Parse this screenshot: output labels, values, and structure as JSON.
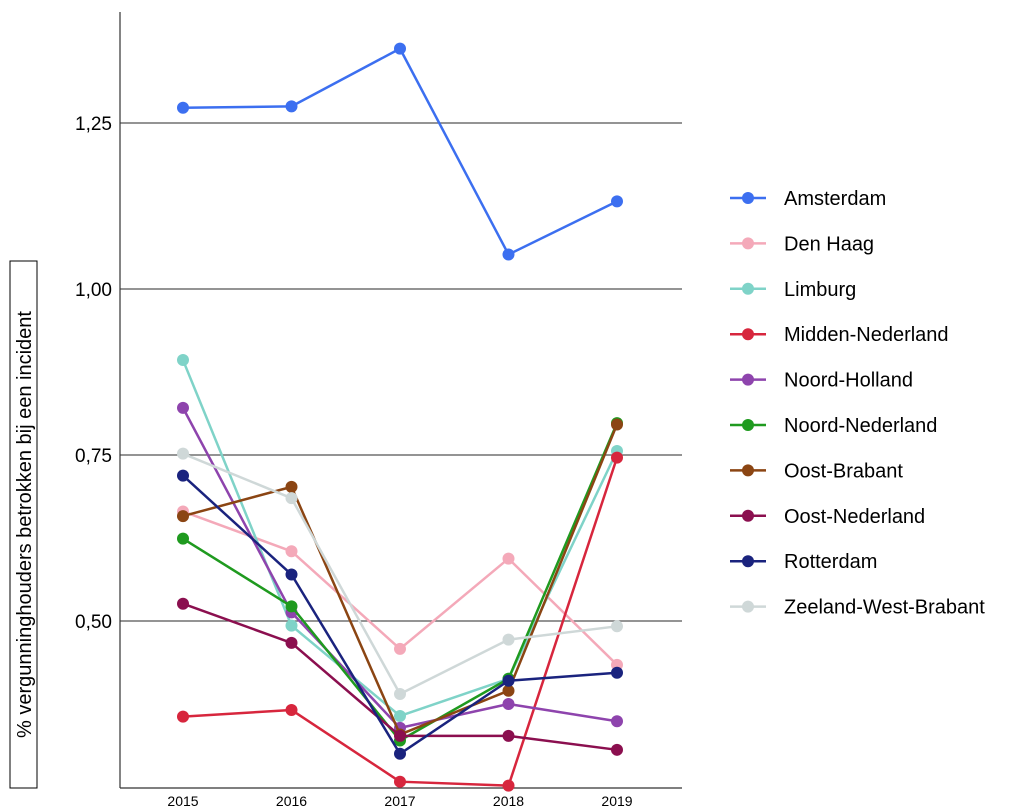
{
  "chart_data": {
    "type": "line",
    "title": "",
    "xlabel": "",
    "ylabel": "% vergunninghouders betrokken bij een incident",
    "x": [
      "2015",
      "2016",
      "2017",
      "2018",
      "2019"
    ],
    "ylim": [
      0.25,
      1.4
    ],
    "y_ticks": [
      {
        "value": 0.5,
        "label": "0,50"
      },
      {
        "value": 0.75,
        "label": "0,75"
      },
      {
        "value": 1.0,
        "label": "1,00"
      },
      {
        "value": 1.25,
        "label": "1,25"
      }
    ],
    "grid": true,
    "legend_position": "right",
    "series": [
      {
        "name": "Amsterdam",
        "color": "#3c6ff0",
        "values": [
          1.273,
          1.275,
          1.362,
          1.052,
          1.132
        ]
      },
      {
        "name": "Den Haag",
        "color": "#f4a9b9",
        "values": [
          0.665,
          0.605,
          0.458,
          0.594,
          0.434
        ]
      },
      {
        "name": "Limburg",
        "color": "#7fd3c8",
        "values": [
          0.893,
          0.493,
          0.357,
          0.413,
          0.756
        ]
      },
      {
        "name": "Midden-Nederland",
        "color": "#d7263d",
        "values": [
          0.356,
          0.366,
          0.258,
          0.252,
          0.746
        ]
      },
      {
        "name": "Noord-Holland",
        "color": "#8e44ad",
        "values": [
          0.821,
          0.513,
          0.339,
          0.375,
          0.349
        ]
      },
      {
        "name": "Noord-Nederland",
        "color": "#1f9a1f",
        "values": [
          0.624,
          0.522,
          0.32,
          0.413,
          0.798
        ]
      },
      {
        "name": "Oost-Brabant",
        "color": "#8b4513",
        "values": [
          0.658,
          0.702,
          0.329,
          0.395,
          0.796
        ]
      },
      {
        "name": "Oost-Nederland",
        "color": "#8b0f4f",
        "values": [
          0.526,
          0.467,
          0.327,
          0.327,
          0.306
        ]
      },
      {
        "name": "Rotterdam",
        "color": "#1a237e",
        "values": [
          0.719,
          0.57,
          0.3,
          0.41,
          0.422
        ]
      },
      {
        "name": "Zeeland-West-Brabant",
        "color": "#cfd8d8",
        "values": [
          0.752,
          0.685,
          0.39,
          0.472,
          0.492
        ]
      }
    ]
  }
}
